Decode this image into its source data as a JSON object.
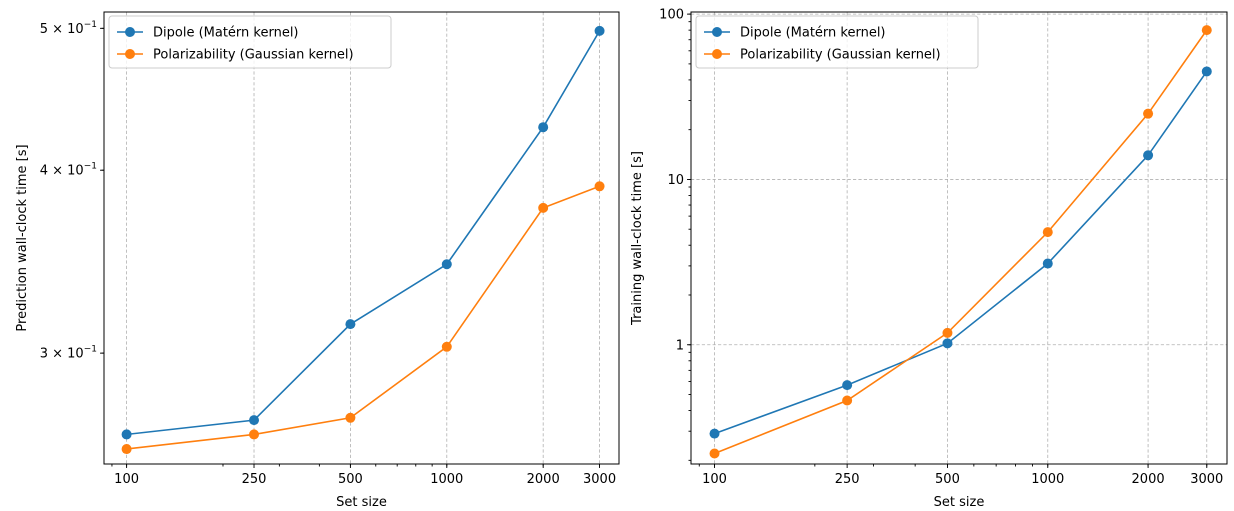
{
  "chart_data": [
    {
      "type": "line",
      "xlabel": "Set size",
      "ylabel": "Prediction wall-clock time [s]",
      "xscale": "log",
      "yscale": "log",
      "xlim": [
        85,
        3450
      ],
      "ylim": [
        0.252,
        0.513
      ],
      "x": [
        100,
        250,
        500,
        1000,
        2000,
        3000
      ],
      "x_tick_labels": [
        "100",
        "250",
        "500",
        "1000",
        "2000",
        "3000"
      ],
      "y_ticks": [
        {
          "value": 0.3,
          "label_base": "3 × 10",
          "label_exp": "−1"
        },
        {
          "value": 0.4,
          "label_base": "4 × 10",
          "label_exp": "−1"
        },
        {
          "value": 0.5,
          "label_base": "5 × 10",
          "label_exp": "−1"
        }
      ],
      "grid": "vertical",
      "legend_position": "upper left",
      "series": [
        {
          "name": "Dipole (Matérn kernel)",
          "color": "#1f77b4",
          "values": [
            0.264,
            0.27,
            0.314,
            0.345,
            0.428,
            0.498
          ]
        },
        {
          "name": "Polarizability (Gaussian kernel)",
          "color": "#ff7f0e",
          "values": [
            0.258,
            0.264,
            0.271,
            0.303,
            0.377,
            0.39
          ]
        }
      ]
    },
    {
      "type": "line",
      "xlabel": "Set size",
      "ylabel": "Training wall-clock time [s]",
      "xscale": "log",
      "yscale": "log",
      "xlim": [
        85,
        3450
      ],
      "ylim": [
        0.19,
        103
      ],
      "x": [
        100,
        250,
        500,
        1000,
        2000,
        3000
      ],
      "x_tick_labels": [
        "100",
        "250",
        "500",
        "1000",
        "2000",
        "3000"
      ],
      "y_ticks": [
        {
          "value": 1,
          "label": "1"
        },
        {
          "value": 10,
          "label": "10"
        },
        {
          "value": 100,
          "label": "100"
        }
      ],
      "grid": "both",
      "legend_position": "upper left",
      "series": [
        {
          "name": "Dipole (Matérn kernel)",
          "color": "#1f77b4",
          "values": [
            0.29,
            0.57,
            1.02,
            3.1,
            14.0,
            45.0
          ]
        },
        {
          "name": "Polarizability (Gaussian kernel)",
          "color": "#ff7f0e",
          "values": [
            0.22,
            0.46,
            1.18,
            4.8,
            25.0,
            80.0
          ]
        }
      ]
    }
  ]
}
